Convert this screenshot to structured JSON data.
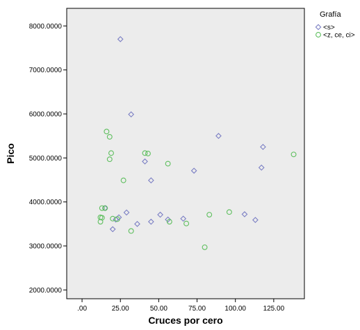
{
  "chart_data": {
    "type": "scatter",
    "title": "",
    "xlabel": "Cruces por cero",
    "ylabel": "Pico",
    "xlim": [
      -10,
      145
    ],
    "ylim": [
      1800,
      8400
    ],
    "x_ticks": [
      0,
      25,
      50,
      75,
      100,
      125
    ],
    "x_tick_labels": [
      ".00",
      "25.00",
      "50.00",
      "75.00",
      "100.00",
      "125.00"
    ],
    "y_ticks": [
      2000,
      3000,
      4000,
      5000,
      6000,
      7000,
      8000
    ],
    "y_tick_labels": [
      "2000.0000",
      "3000.0000",
      "4000.0000",
      "5000.0000",
      "6000.0000",
      "7000.0000",
      "8000.0000"
    ],
    "grid": false,
    "legend": {
      "title": "Grafía",
      "placement": "top-right"
    },
    "plot_background": "#ececec",
    "series": [
      {
        "name": "<s>",
        "marker": "diamond",
        "color": "#7b7fc4",
        "points": [
          [
            25,
            7700
          ],
          [
            32,
            5990
          ],
          [
            89,
            5500
          ],
          [
            118,
            5250
          ],
          [
            117,
            4780
          ],
          [
            41,
            4920
          ],
          [
            73,
            4710
          ],
          [
            45,
            4490
          ],
          [
            15,
            3860
          ],
          [
            29,
            3760
          ],
          [
            24,
            3650
          ],
          [
            22,
            3600
          ],
          [
            36,
            3500
          ],
          [
            20,
            3380
          ],
          [
            45,
            3550
          ],
          [
            51,
            3710
          ],
          [
            56,
            3600
          ],
          [
            66,
            3620
          ],
          [
            106,
            3720
          ],
          [
            113,
            3590
          ]
        ]
      },
      {
        "name": "<z, ce, ci>",
        "marker": "circle",
        "color": "#5fbf5f",
        "points": [
          [
            16,
            5600
          ],
          [
            18,
            5480
          ],
          [
            19,
            5110
          ],
          [
            18,
            4970
          ],
          [
            41,
            5110
          ],
          [
            43,
            5100
          ],
          [
            56,
            4870
          ],
          [
            27,
            4490
          ],
          [
            138,
            5080
          ],
          [
            15,
            3860
          ],
          [
            13,
            3860
          ],
          [
            12,
            3650
          ],
          [
            13,
            3640
          ],
          [
            12,
            3550
          ],
          [
            20,
            3620
          ],
          [
            23,
            3610
          ],
          [
            32,
            3340
          ],
          [
            57,
            3550
          ],
          [
            68,
            3510
          ],
          [
            83,
            3710
          ],
          [
            96,
            3770
          ],
          [
            80,
            2970
          ]
        ]
      }
    ]
  }
}
